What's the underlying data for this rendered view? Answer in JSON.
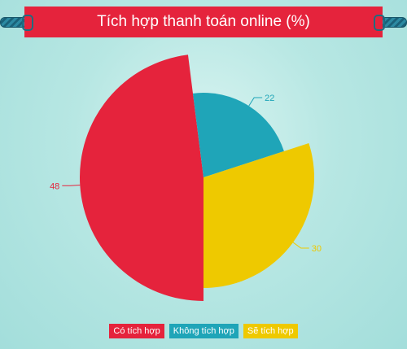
{
  "title": "Tích hợp thanh toán online (%)",
  "chart_data": {
    "type": "pie",
    "title": "Tích hợp thanh toán online (%)",
    "slices": [
      {
        "label": "Có tích hợp",
        "value": 48,
        "color": "#e5233c"
      },
      {
        "label": "Không tích hợp",
        "value": 22,
        "color": "#1fa5b8"
      },
      {
        "label": "Sẽ tích hợp",
        "value": 30,
        "color": "#eec900"
      }
    ],
    "legend": "bottom"
  }
}
